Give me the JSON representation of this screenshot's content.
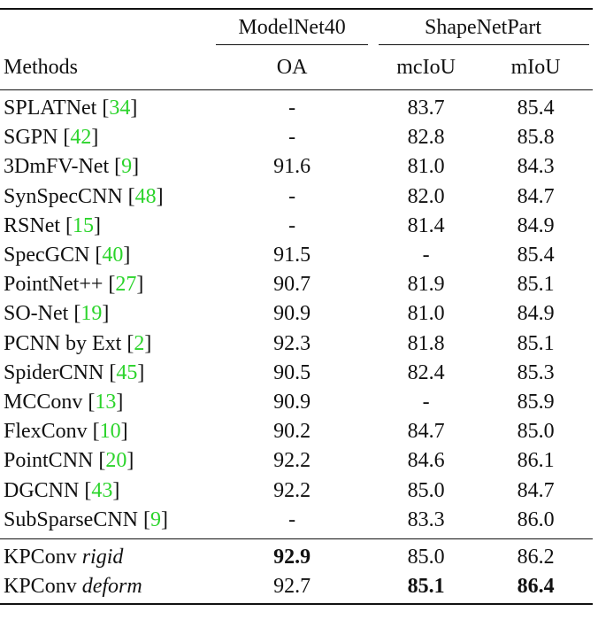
{
  "header": {
    "group_modelnet": "ModelNet40",
    "group_shapenet": "ShapeNetPart",
    "col_methods": "Methods",
    "col_oa": "OA",
    "col_mciou": "mcIoU",
    "col_miou": "mIoU"
  },
  "rows": [
    {
      "method": "SPLATNet [",
      "cite": "34",
      "close": "]",
      "oa": "-",
      "mciou": "83.7",
      "miou": "85.4"
    },
    {
      "method": "SGPN [",
      "cite": "42",
      "close": "]",
      "oa": "-",
      "mciou": "82.8",
      "miou": "85.8"
    },
    {
      "method": "3DmFV-Net [",
      "cite": "9",
      "close": "]",
      "oa": "91.6",
      "mciou": "81.0",
      "miou": "84.3"
    },
    {
      "method": "SynSpecCNN [",
      "cite": "48",
      "close": "]",
      "oa": "-",
      "mciou": "82.0",
      "miou": "84.7"
    },
    {
      "method": "RSNet [",
      "cite": "15",
      "close": "]",
      "oa": "-",
      "mciou": "81.4",
      "miou": "84.9"
    },
    {
      "method": "SpecGCN [",
      "cite": "40",
      "close": "]",
      "oa": "91.5",
      "mciou": "-",
      "miou": "85.4"
    },
    {
      "method": "PointNet++ [",
      "cite": "27",
      "close": "]",
      "oa": "90.7",
      "mciou": "81.9",
      "miou": "85.1"
    },
    {
      "method": "SO-Net [",
      "cite": "19",
      "close": "]",
      "oa": "90.9",
      "mciou": "81.0",
      "miou": "84.9"
    },
    {
      "method": "PCNN by Ext [",
      "cite": "2",
      "close": "]",
      "oa": "92.3",
      "mciou": "81.8",
      "miou": "85.1"
    },
    {
      "method": "SpiderCNN [",
      "cite": "45",
      "close": "]",
      "oa": "90.5",
      "mciou": "82.4",
      "miou": "85.3"
    },
    {
      "method": "MCConv [",
      "cite": "13",
      "close": "]",
      "oa": "90.9",
      "mciou": "-",
      "miou": "85.9"
    },
    {
      "method": "FlexConv [",
      "cite": "10",
      "close": "]",
      "oa": "90.2",
      "mciou": "84.7",
      "miou": "85.0"
    },
    {
      "method": "PointCNN [",
      "cite": "20",
      "close": "]",
      "oa": "92.2",
      "mciou": "84.6",
      "miou": "86.1"
    },
    {
      "method": "DGCNN [",
      "cite": "43",
      "close": "]",
      "oa": "92.2",
      "mciou": "85.0",
      "miou": "84.7"
    },
    {
      "method": "SubSparseCNN [",
      "cite": "9",
      "close": "]",
      "oa": "-",
      "mciou": "83.3",
      "miou": "86.0"
    }
  ],
  "kpconv": [
    {
      "name": "KPConv ",
      "variant": "rigid",
      "oa": "92.9",
      "mciou": "85.0",
      "miou": "86.2"
    },
    {
      "name": "KPConv ",
      "variant": "deform",
      "oa": "92.7",
      "mciou": "85.1",
      "miou": "86.4"
    }
  ],
  "colors": {
    "citation": "#2bd42b",
    "text": "#111111",
    "rule": "#111111"
  }
}
